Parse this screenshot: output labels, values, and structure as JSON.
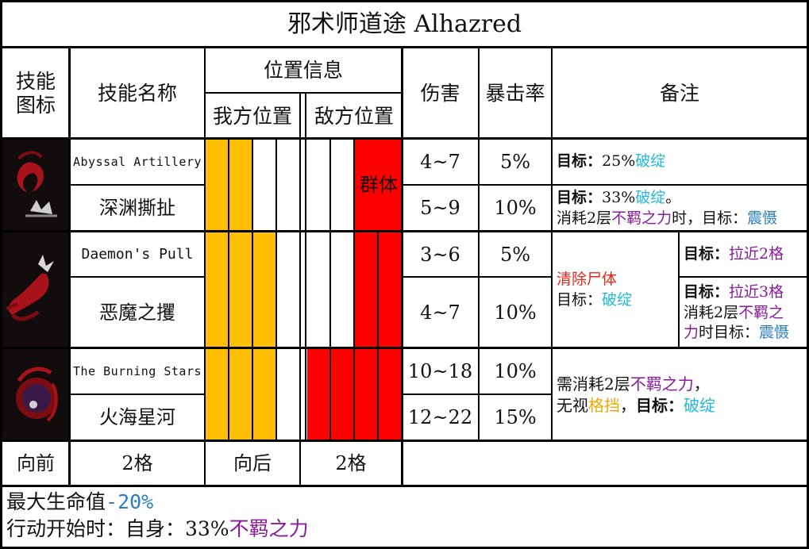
{
  "title": "邪术师道途 Alhazred",
  "headers": {
    "icon": [
      "技能",
      "图标"
    ],
    "name": "技能名称",
    "position": "位置信息",
    "ally_pos": "我方位置",
    "enemy_pos": "敌方位置",
    "damage": "伤害",
    "crit": "暴击率",
    "notes": "备注"
  },
  "skills": [
    {
      "icon": "abyssal-artillery-icon",
      "en": "Abyssal Artillery",
      "zh": "深渊撕扯",
      "group_label": "群体",
      "rows": [
        {
          "damage": "4~7",
          "crit": "5%"
        },
        {
          "damage": "5~9",
          "crit": "10%"
        }
      ],
      "notes": {
        "r1": {
          "label": "目标：",
          "pct": "25%",
          "effect": "破绽"
        },
        "r2": {
          "label": "目标：",
          "pct": "33%",
          "effect": "破绽",
          "tail": "。",
          "l2a": "消耗2层",
          "l2b": "不羁之力",
          "l2c": "时，目标：",
          "l2d": "震慑"
        }
      }
    },
    {
      "icon": "daemons-pull-icon",
      "en": "Daemon's Pull",
      "zh": "恶魔之攫",
      "rows": [
        {
          "damage": "3~6",
          "crit": "5%"
        },
        {
          "damage": "4~7",
          "crit": "10%"
        }
      ],
      "notes": {
        "shared_a": "清除尸体",
        "shared_b": "目标：",
        "shared_c": "破绽",
        "r1_label": "目标：",
        "r1_effect": "拉近2格",
        "r2_label": "目标：",
        "r2_effect": "拉近3格",
        "r2_l2a": "消耗2层",
        "r2_l2b": "不羁之",
        "r2_l3a": "力",
        "r2_l3b": "时目标：",
        "r2_l3c": "震慑"
      }
    },
    {
      "icon": "burning-stars-icon",
      "en": "The Burning Stars",
      "zh": "火海星河",
      "rows": [
        {
          "damage": "10~18",
          "crit": "10%"
        },
        {
          "damage": "12~22",
          "crit": "15%"
        }
      ],
      "notes": {
        "l1a": "需消耗2层",
        "l1b": "不羁之力",
        "l1c": "，",
        "l2a": "无视",
        "l2b": "格挡",
        "l2c": "，",
        "l2d": "目标：",
        "l2e": "破绽"
      }
    }
  ],
  "movement": {
    "forward_label": "向前",
    "forward_value": "2格",
    "back_label": "向后",
    "back_value": "2格"
  },
  "footer": {
    "line1_a": "最大生命值",
    "line1_b": "-20%",
    "line2_a": "行动开始时：自身：33%",
    "line2_b": "不羁之力"
  },
  "colors": {
    "ally_slot": "#ffbf00",
    "enemy_slot": "#ff0000",
    "effect_cyan": "#22b8d8",
    "effect_purple": "#8a1a9a",
    "effect_blue": "#2a7fc0",
    "corpse_red": "#e8271a",
    "block_orange": "#f0a800"
  }
}
